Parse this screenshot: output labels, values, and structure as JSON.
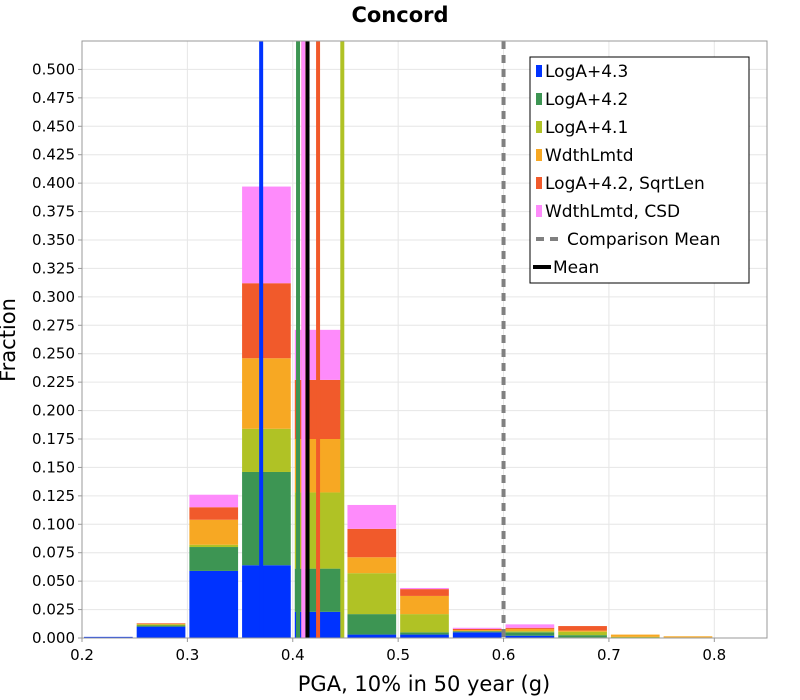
{
  "chart_data": {
    "type": "bar",
    "stacked": true,
    "title": "Concord",
    "xlabel": "PGA, 10% in 50 year (g)",
    "ylabel": "Fraction",
    "xlim": [
      0.2,
      0.85
    ],
    "ylim": [
      0,
      0.525
    ],
    "grid": true,
    "legend_position": "top-right",
    "x_ticks": [
      "0.2",
      "0.3",
      "0.4",
      "0.5",
      "0.6",
      "0.7",
      "0.8"
    ],
    "y_ticks": [
      "0.000",
      "0.025",
      "0.050",
      "0.075",
      "0.100",
      "0.125",
      "0.150",
      "0.175",
      "0.200",
      "0.225",
      "0.250",
      "0.275",
      "0.300",
      "0.325",
      "0.350",
      "0.375",
      "0.400",
      "0.425",
      "0.450",
      "0.475",
      "0.500"
    ],
    "bin_width": 0.05,
    "bins": [
      0.225,
      0.275,
      0.325,
      0.375,
      0.425,
      0.475,
      0.525,
      0.575,
      0.625,
      0.675,
      0.725,
      0.775
    ],
    "series": [
      {
        "name": "LogA+4.3",
        "color": "#0033ff",
        "values": [
          0.001,
          0.01,
          0.059,
          0.064,
          0.023,
          0.003,
          0.003,
          0.005,
          0.002,
          0.0005,
          0,
          0
        ],
        "mean": 0.37
      },
      {
        "name": "LogA+4.2",
        "color": "#3d9553",
        "values": [
          0,
          0.001,
          0.021,
          0.082,
          0.038,
          0.018,
          0.002,
          0.001,
          0.003,
          0.002,
          0,
          0
        ],
        "mean": 0.405
      },
      {
        "name": "LogA+4.1",
        "color": "#b0c225",
        "values": [
          0,
          0.001,
          0.002,
          0.038,
          0.067,
          0.036,
          0.016,
          0,
          0.001,
          0.003,
          0.001,
          0.0005
        ],
        "mean": 0.447
      },
      {
        "name": "WdthLmtd",
        "color": "#f7a823",
        "values": [
          0,
          0.0005,
          0.022,
          0.062,
          0.047,
          0.014,
          0.016,
          0.001,
          0.002,
          0.001,
          0.002,
          0.001
        ],
        "mean": 0.41
      },
      {
        "name": "LogA+4.2, SqrtLen",
        "color": "#f15a2b",
        "values": [
          0,
          0.0005,
          0.011,
          0.066,
          0.052,
          0.025,
          0.006,
          0.001,
          0.001,
          0.004,
          0,
          0
        ],
        "mean": 0.424
      },
      {
        "name": "WdthLmtd, CSD",
        "color": "#fe8bfb",
        "values": [
          0,
          0,
          0.011,
          0.085,
          0.044,
          0.021,
          0.001,
          0.001,
          0.003,
          0,
          0,
          0
        ],
        "mean": 0.41
      }
    ],
    "comparison_mean": {
      "name": "Comparison Mean",
      "value": 0.6,
      "color": "#808080"
    },
    "mean": {
      "name": "Mean",
      "value": 0.414,
      "color": "#000000"
    }
  }
}
